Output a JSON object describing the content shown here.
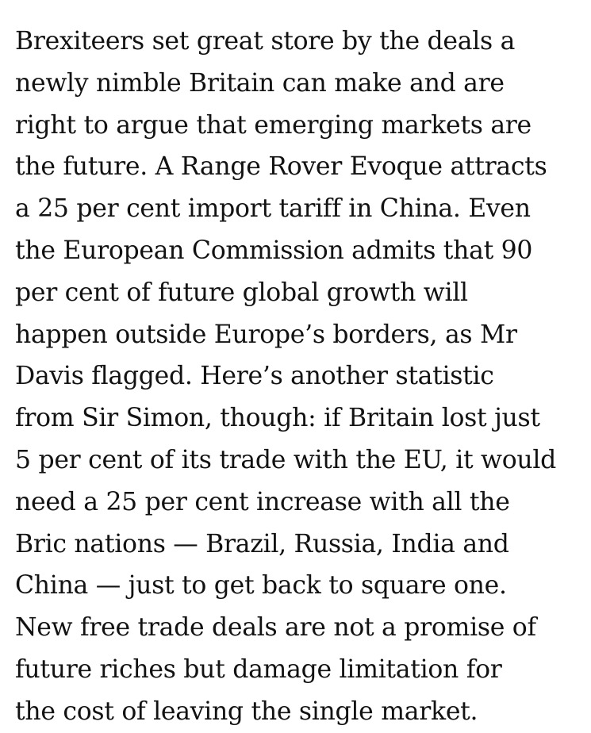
{
  "article": {
    "lines": [
      "Brexiteers set great store by the deals a",
      "newly nimble Britain can make and are",
      "right to argue that emerging markets are",
      "the future. A Range Rover Evoque attracts",
      "a 25 per cent import tariff in China. Even",
      "the European Commission admits that 90",
      "per cent of future global growth will",
      "happen outside Europe’s borders, as Mr",
      "Davis flagged. Here’s another statistic",
      "from Sir Simon, though: if Britain lost just",
      "5 per cent of its trade with the EU, it would",
      "need a 25 per cent increase with all the",
      "Bric nations — Brazil, Russia, India and",
      "China — just to get back to square one.",
      "New free trade deals are not a promise of",
      "future riches but damage limitation for",
      "the cost of leaving the single market."
    ]
  },
  "colors": {
    "text": "#121212",
    "background": "#ffffff"
  }
}
